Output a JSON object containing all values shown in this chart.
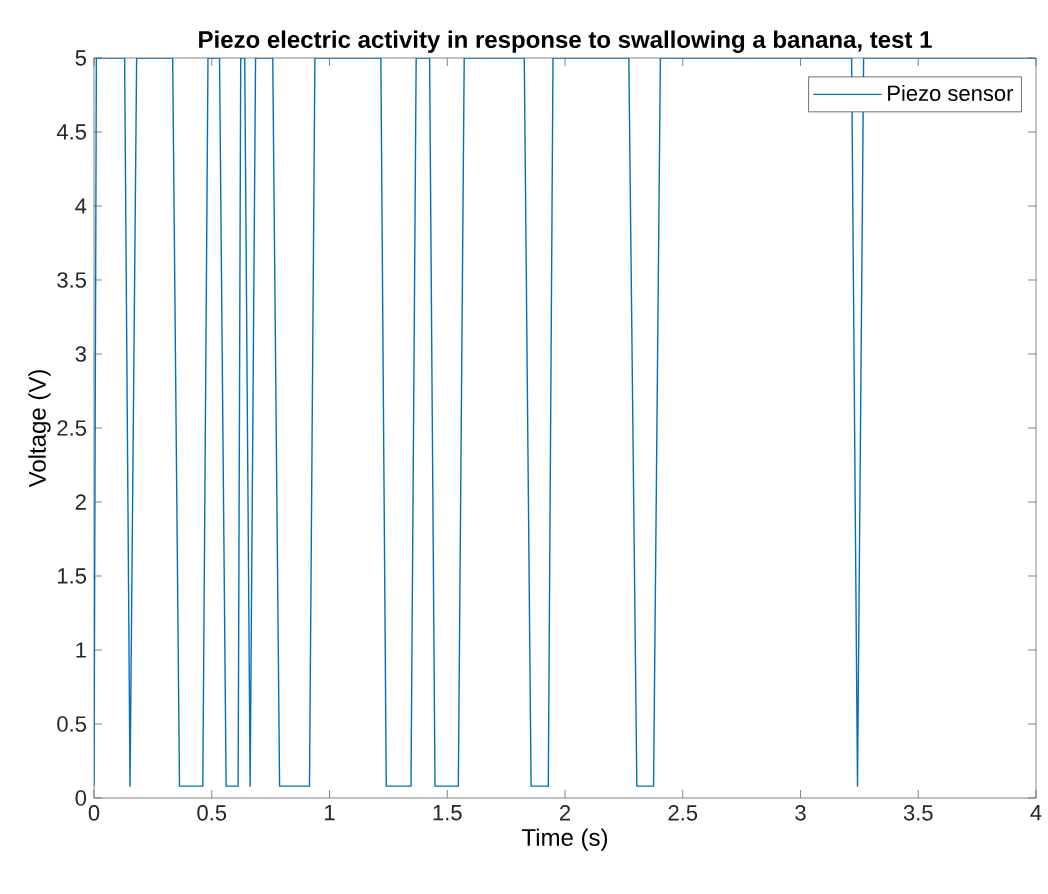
{
  "chart_data": {
    "type": "line",
    "title": "Piezo electric activity in response to swallowing a banana, test 1",
    "xlabel": "Time (s)",
    "ylabel": "Voltage (V)",
    "xlim": [
      0,
      4
    ],
    "ylim": [
      0,
      5
    ],
    "xticks": [
      0,
      0.5,
      1,
      1.5,
      2,
      2.5,
      3,
      3.5,
      4
    ],
    "yticks": [
      0,
      0.5,
      1,
      1.5,
      2,
      2.5,
      3,
      3.5,
      4,
      4.5,
      5
    ],
    "legend": "top right",
    "series": [
      {
        "name": "Piezo sensor",
        "color": "#0072bd",
        "x": [
          0,
          0.01,
          0.13,
          0.153,
          0.181,
          0.334,
          0.363,
          0.462,
          0.484,
          0.533,
          0.561,
          0.612,
          0.623,
          0.64,
          0.663,
          0.686,
          0.759,
          0.788,
          0.915,
          0.938,
          1.218,
          1.241,
          1.346,
          1.368,
          1.425,
          1.448,
          1.547,
          1.572,
          1.827,
          1.856,
          1.929,
          1.949,
          2.271,
          2.305,
          2.376,
          2.405,
          3.217,
          3.242,
          3.268,
          4
        ],
        "values": [
          0.08,
          5,
          5,
          0.08,
          5,
          5,
          0.08,
          0.08,
          5,
          5,
          0.08,
          0.08,
          5,
          5,
          0.08,
          5,
          5,
          0.08,
          0.08,
          5,
          5,
          0.08,
          0.08,
          5,
          5,
          0.08,
          0.08,
          5,
          5,
          0.08,
          0.08,
          5,
          5,
          0.08,
          0.08,
          5,
          5,
          0.08,
          5,
          5
        ]
      }
    ]
  }
}
